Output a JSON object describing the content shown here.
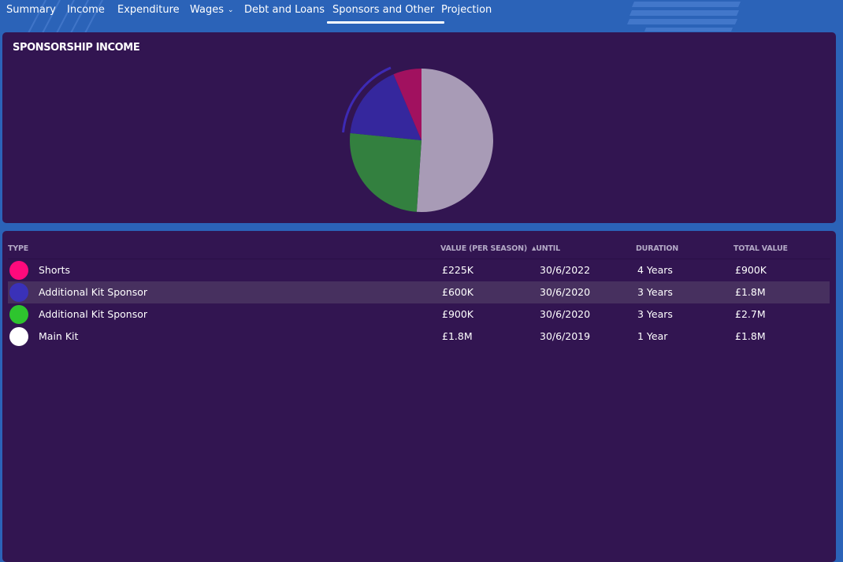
{
  "tabs": [
    {
      "label": "Summary"
    },
    {
      "label": "Income"
    },
    {
      "label": "Expenditure"
    },
    {
      "label": "Wages"
    },
    {
      "label": "Debt and Loans"
    },
    {
      "label": "Sponsors and Other",
      "active": true
    },
    {
      "label": "Projection"
    }
  ],
  "icons": {
    "wages_dropdown": "chevron-down-icon",
    "sort_until": "sort-ascending-icon"
  },
  "panel_title": "SPONSORSHIP INCOME",
  "table": {
    "columns": {
      "type": "TYPE",
      "value": "VALUE (PER SEASON)",
      "until": "UNTIL",
      "duration": "DURATION",
      "total": "TOTAL VALUE"
    },
    "sort_indicator": "▲",
    "rows": [
      {
        "type": "Shorts",
        "value": "£225K",
        "until": "30/6/2022",
        "duration": "4 Years",
        "total": "£900K",
        "color": "#ff0a7c"
      },
      {
        "type": "Additional Kit Sponsor",
        "value": "£600K",
        "until": "30/6/2020",
        "duration": "3 Years",
        "total": "£1.8M",
        "color": "#3a31b8"
      },
      {
        "type": "Additional Kit Sponsor",
        "value": "£900K",
        "until": "30/6/2020",
        "duration": "3 Years",
        "total": "£2.7M",
        "color": "#2ec52e"
      },
      {
        "type": "Main Kit",
        "value": "£1.8M",
        "until": "30/6/2019",
        "duration": "1 Year",
        "total": "£1.8M",
        "color": "#ffffff"
      }
    ]
  },
  "chart_data": {
    "type": "pie",
    "slices": [
      {
        "label": "Shorts",
        "value": 225,
        "color": "#a1115f"
      },
      {
        "label": "Additional Kit Sponsor",
        "value": 600,
        "color": "#35279d"
      },
      {
        "label": "Additional Kit Sponsor",
        "value": 900,
        "color": "#33803f"
      },
      {
        "label": "Main Kit",
        "value": 1800,
        "color": "#a89bb6"
      }
    ],
    "highlighted_slice": 1,
    "highlight_color": "#3d2ab5"
  }
}
